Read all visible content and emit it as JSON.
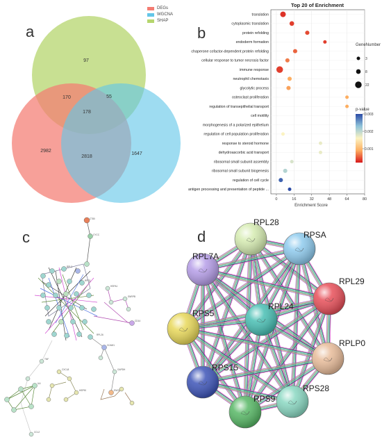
{
  "panel_labels": {
    "a": "a",
    "b": "b",
    "c": "c",
    "d": "d"
  },
  "chart_data": [
    {
      "type": "venn",
      "sets": [
        {
          "name": "DEGs",
          "color": "#f47c72"
        },
        {
          "name": "WGCNA",
          "color": "#63c6e8"
        },
        {
          "name": "SHAP",
          "color": "#b6d66e"
        }
      ],
      "regions": {
        "DEGs_only": 2982,
        "WGCNA_only": 1647,
        "SHAP_only": 97,
        "DEGs_SHAP": 170,
        "SHAP_WGCNA": 55,
        "DEGs_WGCNA": 2818,
        "all_three": 178
      },
      "labels": {
        "DEGs_only": "2982",
        "WGCNA_only": "1647",
        "SHAP_only": "97",
        "DEGs_SHAP": "170",
        "SHAP_WGCNA": "55",
        "DEGs_WGCNA": "2818",
        "all_three": "178"
      }
    },
    {
      "type": "scatter",
      "title": "Top 20 of  Enrichment",
      "xlabel": "Enrichment Score",
      "ylabel": "",
      "xlim": [
        -5,
        80
      ],
      "xticks": [
        0,
        16,
        32,
        48,
        64,
        80
      ],
      "xtick_labels": [
        "0",
        "16",
        "32",
        "48",
        "64",
        "80"
      ],
      "grid": true,
      "categories": [
        "translation",
        "cytoplasmic translation",
        "protein refolding",
        "endoderm formation",
        "chaperone cofactor-dependent protein refolding",
        "cellular response to tumor necrosis factor",
        "immune response",
        "neutrophil chemotaxis",
        "glycolytic process",
        "osteoclast proliferation",
        "regulation of transepithelial transport",
        "cell motility",
        "morphogenesis of a polarized epithelium",
        "regulation of cell population proliferation",
        "response to steroid hormone",
        "dehydroascorbic acid transport",
        "ribosomal small subunit assembly",
        "ribosomal small subunit biogenesis",
        "regulation of cell cycle",
        "antigen processing and presentation of peptide ..."
      ],
      "x": [
        6,
        14,
        28,
        44,
        17,
        10,
        3,
        12,
        11,
        64,
        64,
        0,
        0,
        6,
        40,
        40,
        14,
        8,
        4,
        12
      ],
      "gene_number": [
        14,
        8,
        6,
        3,
        6,
        6,
        22,
        6,
        6,
        3,
        3,
        0,
        0,
        3,
        3,
        3,
        3,
        6,
        6,
        3
      ],
      "pvalue": [
        0.0002,
        0.0003,
        0.0004,
        0.0003,
        0.0006,
        0.0008,
        0.0003,
        0.0012,
        0.0011,
        0.0012,
        0.0012,
        null,
        null,
        0.002,
        0.0021,
        0.0021,
        0.0022,
        0.0024,
        0.003,
        0.0031
      ],
      "size_legend": {
        "title": "GeneNumber",
        "values": [
          3,
          8,
          22
        ],
        "labels": [
          "3",
          "8",
          "22"
        ]
      },
      "color_legend": {
        "title": "p-value",
        "ticks": [
          0.003,
          0.002,
          0.001
        ],
        "tick_labels": [
          "0.003",
          "0.002",
          "0.001"
        ],
        "low_color": "#d7191c",
        "mid_color": "#fee090",
        "high_color": "#2b4ba6"
      }
    },
    {
      "type": "network",
      "node_labels": [
        "CT80",
        "CYCC",
        "RPL3",
        "RPS3",
        "HSPA1",
        "SNRPB",
        "CD14",
        "VCAM1",
        "RPL26",
        "GAPDH",
        "ENO1",
        "CXCL8",
        "HSP90",
        "TNF",
        "IL6",
        "CCL2"
      ]
    },
    {
      "type": "network",
      "nodes": [
        {
          "name": "RPL28",
          "color": "#d6ecb2"
        },
        {
          "name": "RPSA",
          "color": "#8fcbee"
        },
        {
          "name": "RPL7A",
          "color": "#b69ee8"
        },
        {
          "name": "RPL29",
          "color": "#e8505a"
        },
        {
          "name": "RPL24",
          "color": "#49bfb4"
        },
        {
          "name": "RPS5",
          "color": "#e8d85a"
        },
        {
          "name": "RPLP0",
          "color": "#e8bc9a"
        },
        {
          "name": "RPS15",
          "color": "#3e55b8"
        },
        {
          "name": "RPS28",
          "color": "#8ad8c2"
        },
        {
          "name": "RPS9",
          "color": "#58b866"
        }
      ],
      "edge_colors": [
        "#e24ad9",
        "#2c2c2c",
        "#33d1e0",
        "#86c540",
        "#4b6fe0",
        "#d7d23a",
        "#9b3fd6"
      ]
    }
  ]
}
